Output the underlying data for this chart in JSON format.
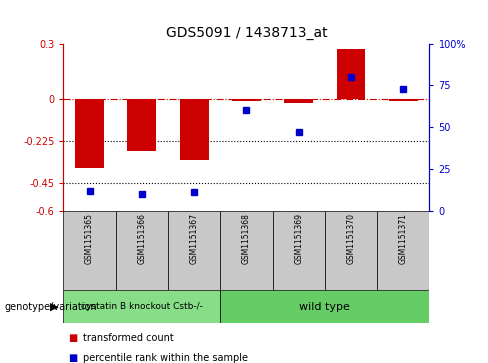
{
  "title": "GDS5091 / 1438713_at",
  "samples": [
    "GSM1151365",
    "GSM1151366",
    "GSM1151367",
    "GSM1151368",
    "GSM1151369",
    "GSM1151370",
    "GSM1151371"
  ],
  "red_values": [
    -0.37,
    -0.28,
    -0.33,
    -0.01,
    -0.02,
    0.27,
    -0.01
  ],
  "blue_values_pct": [
    12,
    10,
    11,
    60,
    47,
    80,
    73
  ],
  "ylim_left": [
    -0.6,
    0.3
  ],
  "ylim_right": [
    0,
    100
  ],
  "yticks_left": [
    -0.6,
    -0.45,
    -0.225,
    0,
    0.3
  ],
  "ytick_labels_left": [
    "-0.6",
    "-0.45",
    "-0.225",
    "0",
    "0.3"
  ],
  "yticks_right": [
    0,
    25,
    50,
    75,
    100
  ],
  "ytick_labels_right": [
    "0",
    "25",
    "50",
    "75",
    "100%"
  ],
  "hlines": [
    -0.225,
    -0.45
  ],
  "zero_line": 0,
  "group1_label": "cystatin B knockout Cstb-/-",
  "group2_label": "wild type",
  "group1_count": 3,
  "group2_count": 4,
  "genotype_label": "genotype/variation",
  "legend_red": "transformed count",
  "legend_blue": "percentile rank within the sample",
  "red_color": "#cc0000",
  "blue_color": "#0000cc",
  "bar_width": 0.55,
  "gray_color": "#c8c8c8",
  "group1_color": "#88dd88",
  "group2_color": "#66cc66"
}
